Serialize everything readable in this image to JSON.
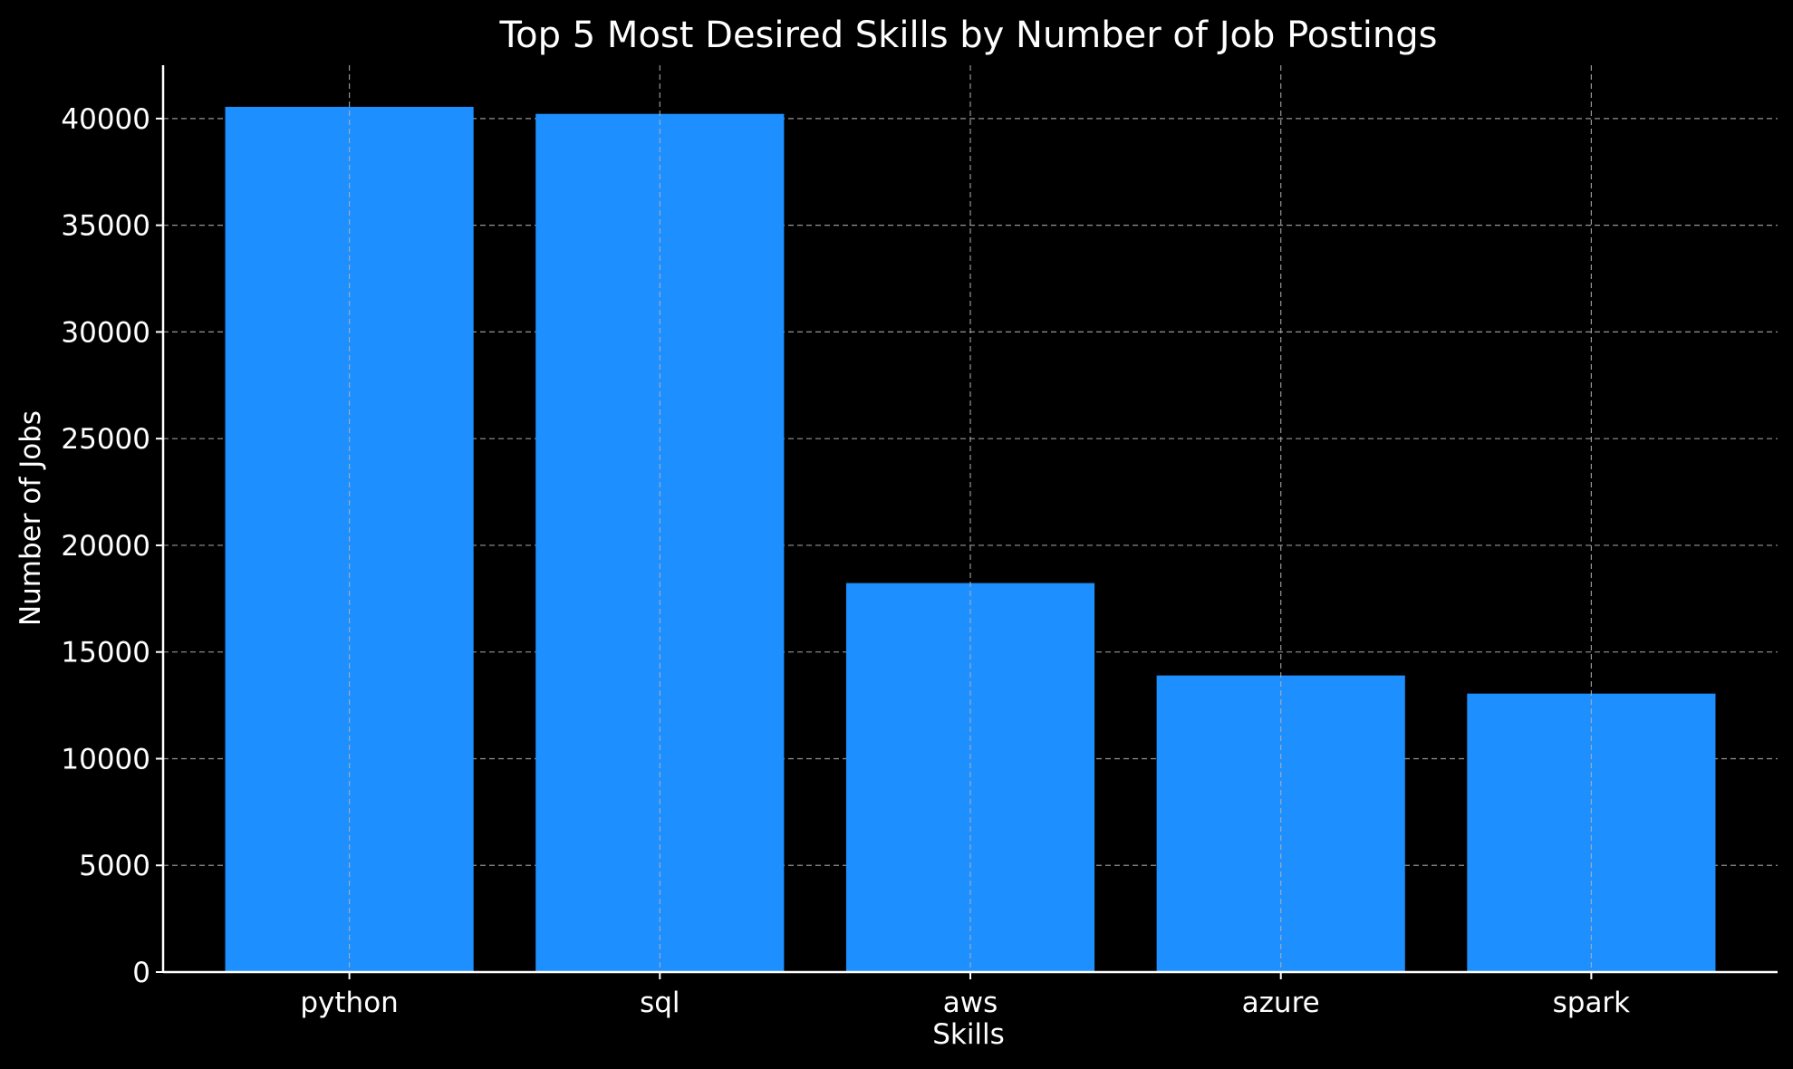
{
  "chart_data": {
    "type": "bar",
    "title": "Top 5 Most Desired Skills by Number of Job Postings",
    "xlabel": "Skills",
    "ylabel": "Number of Jobs",
    "categories": [
      "python",
      "sql",
      "aws",
      "azure",
      "spark"
    ],
    "values": [
      40550,
      40220,
      18230,
      13900,
      13050
    ],
    "ylim": [
      0,
      42500
    ],
    "yticks": [
      0,
      5000,
      10000,
      15000,
      20000,
      25000,
      30000,
      35000,
      40000
    ],
    "grid": true,
    "bar_color": "#1e8fff",
    "background": "#000000",
    "text_color": "#ffffff"
  }
}
